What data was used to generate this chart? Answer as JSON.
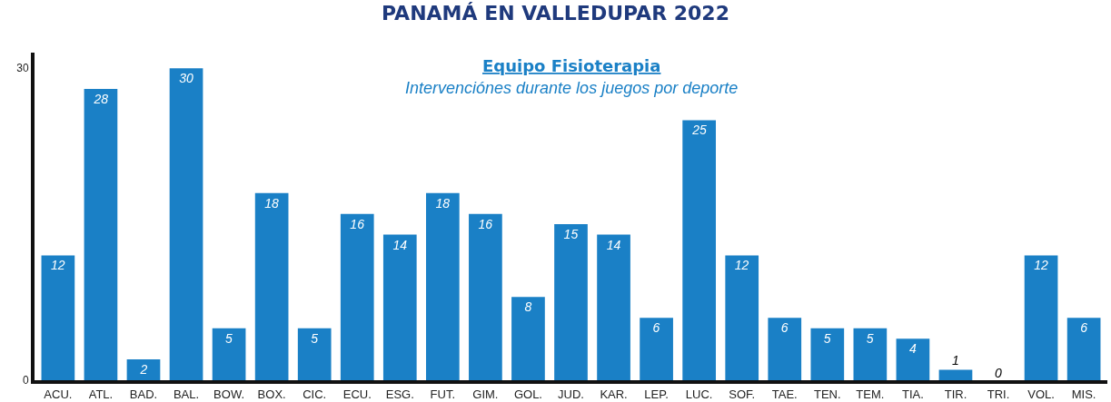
{
  "chart_data": {
    "type": "bar",
    "title": "PANAMÁ EN VALLEDUPAR 2022",
    "subtitle": "Equipo Fisioterapia",
    "annotations": [
      "Intervenciónes durante los juegos por deporte"
    ],
    "categories": [
      "ACU.",
      "ATL.",
      "BAD.",
      "BAL.",
      "BOW.",
      "BOX.",
      "CIC.",
      "ECU.",
      "ESG.",
      "FUT.",
      "GIM.",
      "GOL.",
      "JUD.",
      "KAR.",
      "LEP.",
      "LUC.",
      "SOF.",
      "TAE.",
      "TEN.",
      "TEM.",
      "TIA.",
      "TIR.",
      "TRI.",
      "VOL.",
      "MIS."
    ],
    "values": [
      12,
      28,
      2,
      30,
      5,
      18,
      5,
      16,
      14,
      18,
      16,
      8,
      15,
      14,
      6,
      25,
      12,
      6,
      5,
      5,
      4,
      1,
      0,
      12,
      6
    ],
    "color": "#1a80c6",
    "ylim": [
      0,
      31.5
    ],
    "yticks": [
      0,
      30
    ],
    "grid": false,
    "data_labels": true
  }
}
